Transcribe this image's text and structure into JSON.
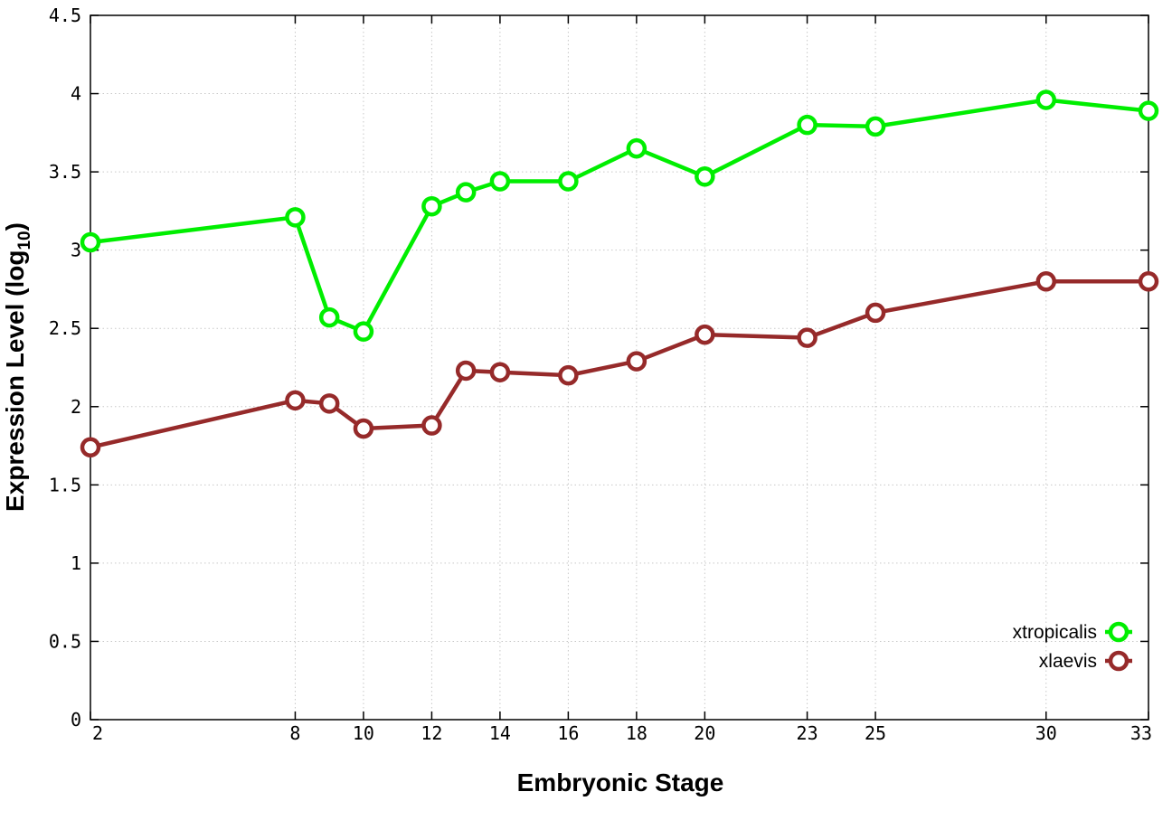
{
  "chart_data": {
    "type": "line",
    "xlabel": "Embryonic Stage",
    "ylabel_main": "Expression Level (log",
    "ylabel_sub": "10",
    "ylabel_close": ")",
    "xlim": [
      2,
      33
    ],
    "ylim": [
      0,
      4.5
    ],
    "x_ticks": [
      2,
      8,
      10,
      12,
      14,
      16,
      18,
      20,
      23,
      25,
      30,
      33
    ],
    "y_ticks": [
      {
        "value": 0,
        "label": "0"
      },
      {
        "value": 0.5,
        "label": "0.5"
      },
      {
        "value": 1,
        "label": "1"
      },
      {
        "value": 1.5,
        "label": "1.5"
      },
      {
        "value": 2,
        "label": "2"
      },
      {
        "value": 2.5,
        "label": "2.5"
      },
      {
        "value": 3,
        "label": "3"
      },
      {
        "value": 3.5,
        "label": "3.5"
      },
      {
        "value": 4,
        "label": "4"
      },
      {
        "value": 4.5,
        "label": "4.5"
      }
    ],
    "grid": true,
    "legend_position": "bottom-right",
    "x": [
      2,
      8,
      9,
      10,
      12,
      13,
      14,
      16,
      18,
      20,
      23,
      25,
      30,
      33
    ],
    "series": [
      {
        "name": "xtropicalis",
        "color": "#00ee00",
        "values": [
          3.05,
          3.21,
          2.57,
          2.48,
          3.28,
          3.37,
          3.44,
          3.44,
          3.65,
          3.47,
          3.8,
          3.79,
          3.96,
          3.89
        ]
      },
      {
        "name": "xlaevis",
        "color": "#962a2a",
        "values": [
          1.74,
          2.04,
          2.02,
          1.86,
          1.88,
          2.23,
          2.22,
          2.2,
          2.29,
          2.46,
          2.44,
          2.6,
          2.8,
          2.8
        ]
      }
    ]
  }
}
